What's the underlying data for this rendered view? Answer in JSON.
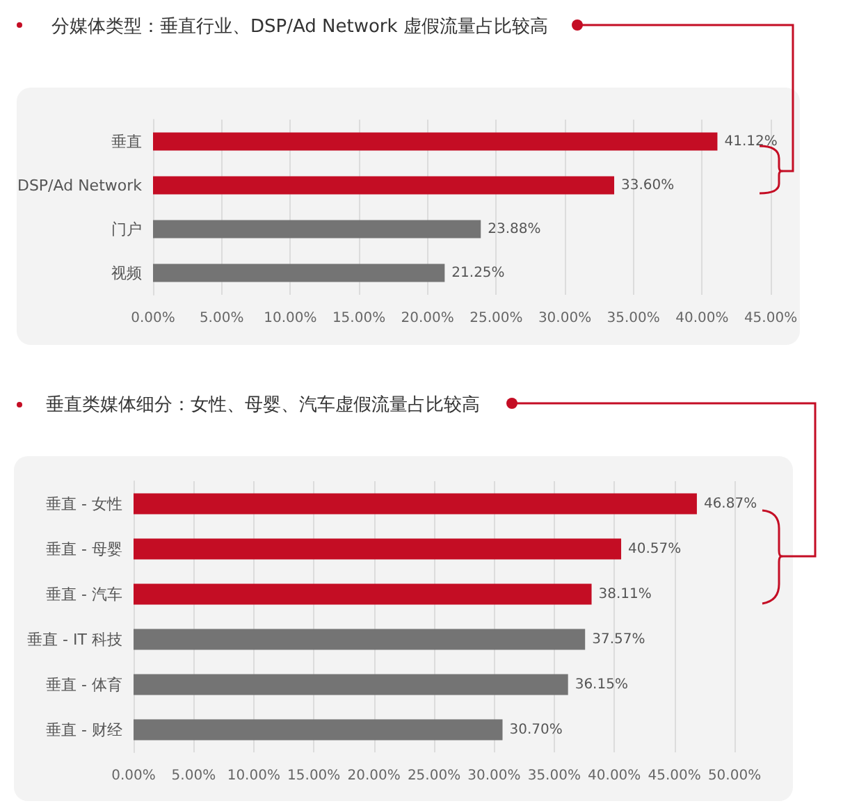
{
  "chart_data": [
    {
      "type": "bar",
      "orientation": "horizontal",
      "title": "分媒体类型：垂直行业、DSP/Ad Network 虚假流量占比较高",
      "categories": [
        "垂直",
        "DSP/Ad Network",
        "门户",
        "视频"
      ],
      "values": [
        41.12,
        33.6,
        23.88,
        21.25
      ],
      "colors": [
        "#c40d24",
        "#c40d24",
        "#747474",
        "#747474"
      ],
      "value_labels": [
        "41.12%",
        "33.60%",
        "23.88%",
        "21.25%"
      ],
      "xlim": [
        0,
        45
      ],
      "xticks": [
        {
          "value": 0,
          "label": "0.00%"
        },
        {
          "value": 5,
          "label": "5.00%"
        },
        {
          "value": 10,
          "label": "10.00%"
        },
        {
          "value": 15,
          "label": "15.00%"
        },
        {
          "value": 20,
          "label": "20.00%"
        },
        {
          "value": 25,
          "label": "25.00%"
        },
        {
          "value": 30,
          "label": "30.00%"
        },
        {
          "value": 35,
          "label": "35.00%"
        },
        {
          "value": 40,
          "label": "40.00%"
        },
        {
          "value": 45,
          "label": "45.00%"
        }
      ],
      "grid": "x"
    },
    {
      "type": "bar",
      "orientation": "horizontal",
      "title": "垂直类媒体细分：女性、母婴、汽车虚假流量占比较高",
      "categories": [
        "垂直 - 女性",
        "垂直 - 母婴",
        "垂直 - 汽车",
        "垂直 - IT 科技",
        "垂直 - 体育",
        "垂直 - 财经"
      ],
      "values": [
        46.87,
        40.57,
        38.11,
        37.57,
        36.15,
        30.7
      ],
      "colors": [
        "#c40d24",
        "#c40d24",
        "#c40d24",
        "#747474",
        "#747474",
        "#747474"
      ],
      "value_labels": [
        "46.87%",
        "40.57%",
        "38.11%",
        "37.57%",
        "36.15%",
        "30.70%"
      ],
      "xlim": [
        0,
        50
      ],
      "xticks": [
        {
          "value": 0,
          "label": "0.00%"
        },
        {
          "value": 5,
          "label": "5.00%"
        },
        {
          "value": 10,
          "label": "10.00%"
        },
        {
          "value": 15,
          "label": "15.00%"
        },
        {
          "value": 20,
          "label": "20.00%"
        },
        {
          "value": 25,
          "label": "25.00%"
        },
        {
          "value": 30,
          "label": "30.00%"
        },
        {
          "value": 35,
          "label": "35.00%"
        },
        {
          "value": 40,
          "label": "40.00%"
        },
        {
          "value": 45,
          "label": "45.00%"
        },
        {
          "value": 50,
          "label": "50.00%"
        }
      ],
      "grid": "x"
    }
  ]
}
